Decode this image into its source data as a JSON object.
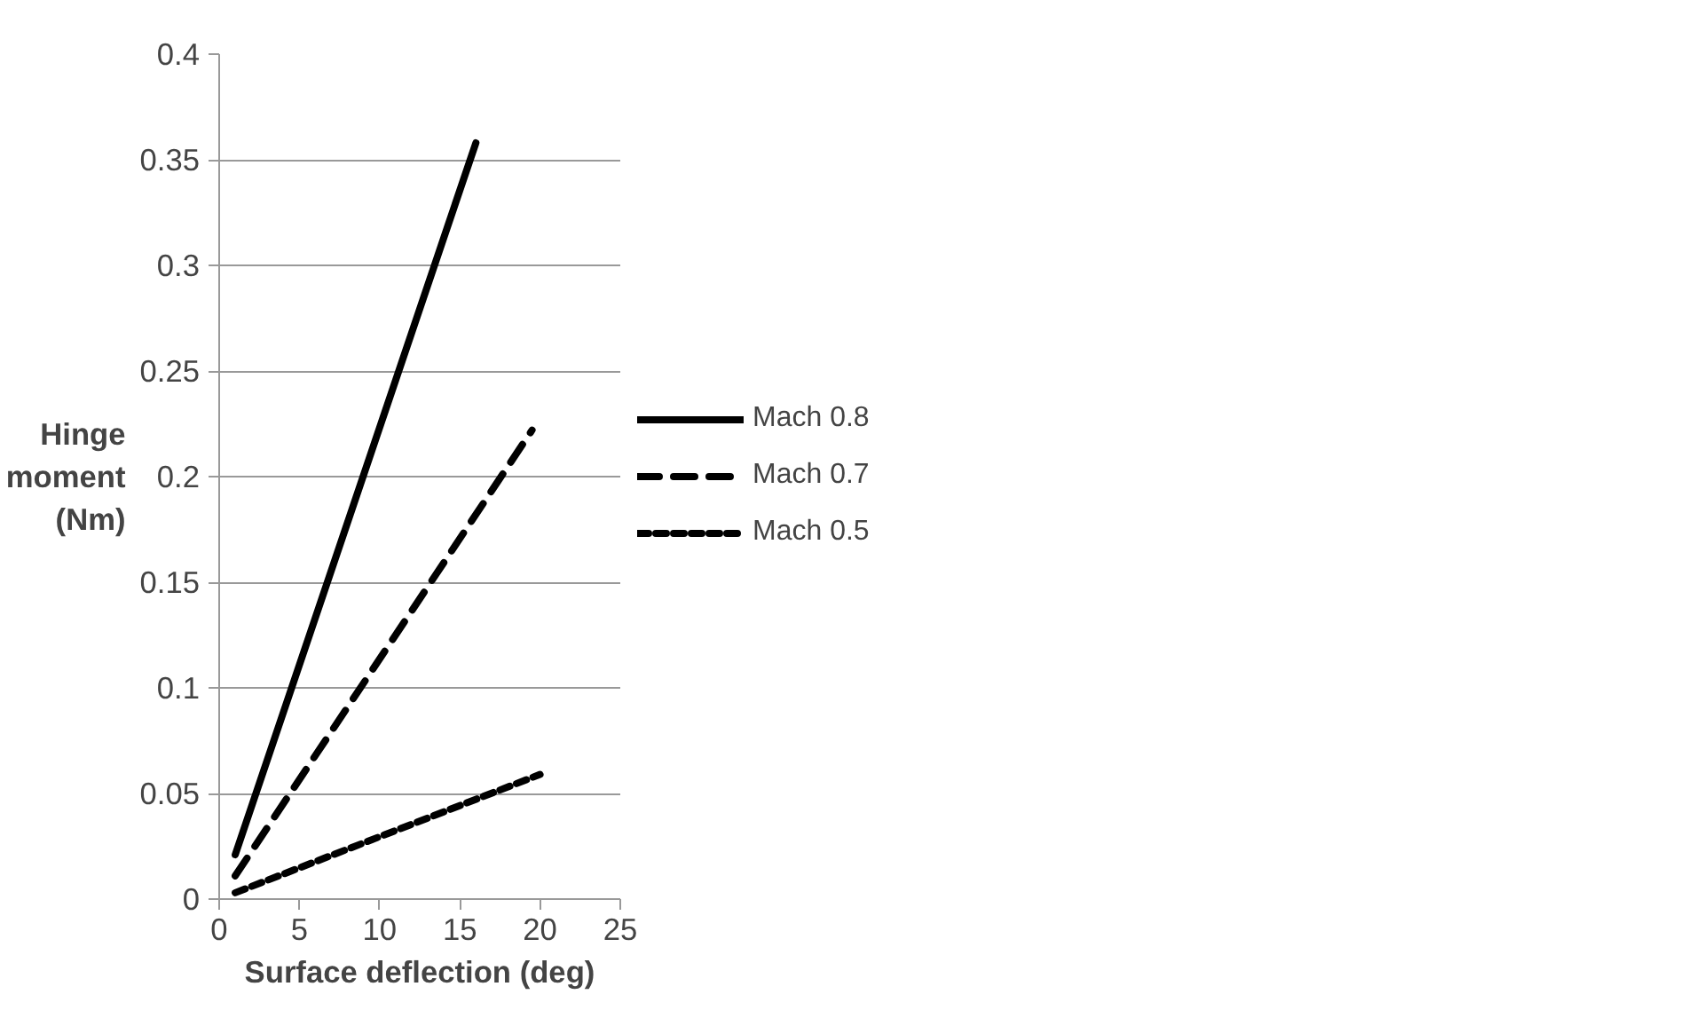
{
  "chart_data": {
    "type": "line",
    "xlabel": "Surface deflection (deg)",
    "ylabel": "Hinge\nmoment\n(Nm)",
    "xlim": [
      0,
      25
    ],
    "xticks": [
      0,
      5,
      10,
      15,
      20,
      25
    ],
    "ylim": [
      0,
      0.4
    ],
    "yticks": [
      0,
      0.05,
      0.1,
      0.15,
      0.2,
      0.25,
      0.3,
      0.35,
      0.4
    ],
    "grid": "y",
    "legend": "right",
    "marker": "none",
    "series": [
      {
        "name": "Mach 0.8",
        "color": "#000000",
        "line_style": "solid",
        "x": [
          1,
          16
        ],
        "values": [
          0.021,
          0.358
        ]
      },
      {
        "name": "Mach 0.7",
        "color": "#000000",
        "line_style": "dashed",
        "x": [
          1,
          19.5
        ],
        "values": [
          0.011,
          0.222
        ]
      },
      {
        "name": "Mach 0.5",
        "color": "#000000",
        "line_style": "dotted",
        "x": [
          1,
          20
        ],
        "values": [
          0.003,
          0.059
        ]
      }
    ]
  }
}
